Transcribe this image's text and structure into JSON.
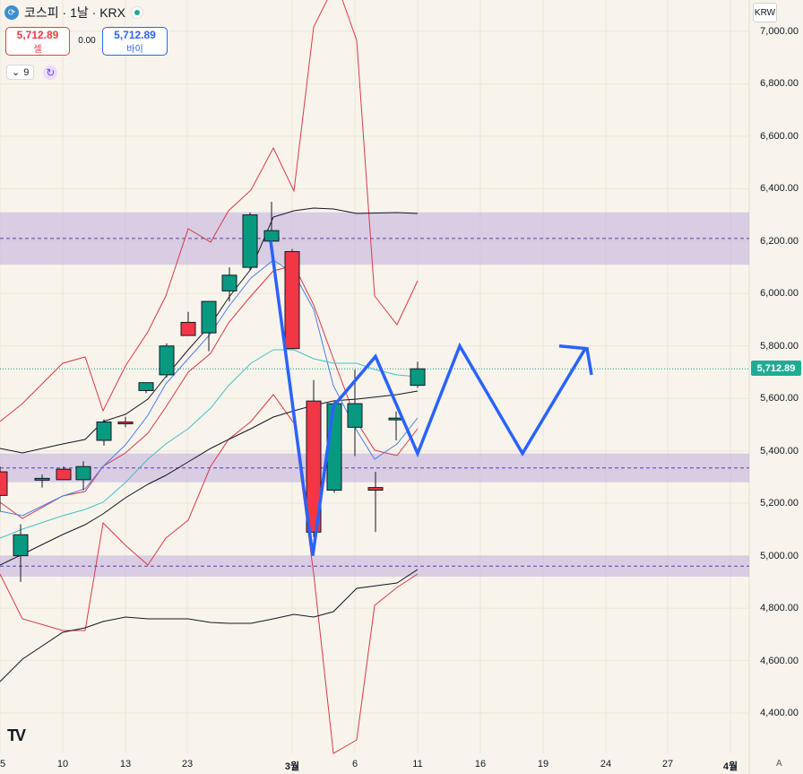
{
  "header": {
    "title": "코스피 · 1날 · KRX",
    "sell_price": "5,712.89",
    "sell_label": "셀",
    "spread": "0.00",
    "buy_price": "5,712.89",
    "buy_label": "바이",
    "indicator_count": "9",
    "status_color": "#22ab94"
  },
  "price_axis": {
    "currency": "KRW",
    "labels": [
      "7,000.00",
      "6,800.00",
      "6,600.00",
      "6,400.00",
      "6,200.00",
      "6,000.00",
      "5,800.00",
      "5,600.00",
      "5,400.00",
      "5,200.00",
      "5,000.00",
      "4,800.00",
      "4,600.00",
      "4,400.00"
    ],
    "last_price": "5,712.89",
    "last_price_color": "#22ab94"
  },
  "time_axis": {
    "labels": [
      "5",
      "10",
      "13",
      "23",
      "3월",
      "6",
      "11",
      "16",
      "19",
      "24",
      "27",
      "4월"
    ],
    "auto_label": "A"
  },
  "chart_data": {
    "type": "candlestick",
    "y_range": [
      4300,
      7060
    ],
    "candles": [
      {
        "o": 5320,
        "h": 5340,
        "l": 5170,
        "c": 5230,
        "dir": "down"
      },
      {
        "o": 5000,
        "h": 5120,
        "l": 4900,
        "c": 5080,
        "dir": "up"
      },
      {
        "o": 5290,
        "h": 5310,
        "l": 5260,
        "c": 5295,
        "dir": "up"
      },
      {
        "o": 5330,
        "h": 5340,
        "l": 5290,
        "c": 5290,
        "dir": "down"
      },
      {
        "o": 5290,
        "h": 5360,
        "l": 5250,
        "c": 5340,
        "dir": "up"
      },
      {
        "o": 5440,
        "h": 5520,
        "l": 5420,
        "c": 5510,
        "dir": "up"
      },
      {
        "o": 5510,
        "h": 5530,
        "l": 5490,
        "c": 5505,
        "dir": "down"
      },
      {
        "o": 5630,
        "h": 5660,
        "l": 5620,
        "c": 5660,
        "dir": "up"
      },
      {
        "o": 5690,
        "h": 5810,
        "l": 5680,
        "c": 5800,
        "dir": "up"
      },
      {
        "o": 5890,
        "h": 5930,
        "l": 5840,
        "c": 5840,
        "dir": "down"
      },
      {
        "o": 5850,
        "h": 5970,
        "l": 5780,
        "c": 5970,
        "dir": "up"
      },
      {
        "o": 6010,
        "h": 6100,
        "l": 5970,
        "c": 6070,
        "dir": "up"
      },
      {
        "o": 6100,
        "h": 6310,
        "l": 6090,
        "c": 6300,
        "dir": "up"
      },
      {
        "o": 6200,
        "h": 6350,
        "l": 6160,
        "c": 6240,
        "dir": "up"
      },
      {
        "o": 6160,
        "h": 6170,
        "l": 5790,
        "c": 5790,
        "dir": "down"
      },
      {
        "o": 5590,
        "h": 5670,
        "l": 5070,
        "c": 5090,
        "dir": "down"
      },
      {
        "o": 5250,
        "h": 5590,
        "l": 5240,
        "c": 5580,
        "dir": "up"
      },
      {
        "o": 5490,
        "h": 5710,
        "l": 5380,
        "c": 5580,
        "dir": "up"
      },
      {
        "o": 5260,
        "h": 5320,
        "l": 5090,
        "c": 5250,
        "dir": "down"
      },
      {
        "o": 5520,
        "h": 5550,
        "l": 5440,
        "c": 5525,
        "dir": "up"
      },
      {
        "o": 5650,
        "h": 5740,
        "l": 5640,
        "c": 5712.89,
        "dir": "up"
      }
    ],
    "zones": [
      {
        "from": 6110,
        "to": 6310,
        "mid": 6210
      },
      {
        "from": 5280,
        "to": 5390,
        "mid": 5335
      },
      {
        "from": 4920,
        "to": 5000,
        "mid": 4960
      }
    ],
    "projection": [
      [
        6200,
        6185
      ],
      [
        5000,
        4990
      ],
      [
        5570,
        5570
      ],
      [
        5760,
        5760
      ],
      [
        5390,
        5390
      ],
      [
        5800,
        5800
      ],
      [
        5390,
        5390
      ],
      [
        5790,
        5790
      ],
      [
        5690,
        5690
      ]
    ],
    "up_color": "#089981",
    "down_color": "#f23645",
    "projection_color": "#2962ff",
    "zone_color": "#b39ddb"
  }
}
